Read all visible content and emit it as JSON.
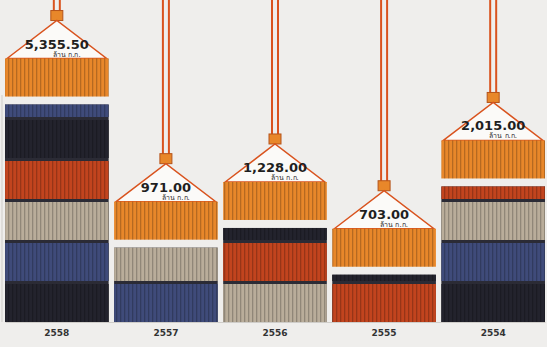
{
  "chart_data": {
    "type": "bar",
    "categories": [
      "2558",
      "2557",
      "2556",
      "2555",
      "2554"
    ],
    "values": [
      5355.5,
      971,
      1228,
      703,
      2015
    ],
    "value_labels": [
      "5,355.50",
      "971.00",
      "1,228.00",
      "703.00",
      "2,015.00"
    ],
    "y_label": "ล้าน ก.ก.",
    "ylim": [
      400,
      6000
    ],
    "log": "y",
    "data_labels": true,
    "tick_labels": "x",
    "color": "#e8872a"
  }
}
